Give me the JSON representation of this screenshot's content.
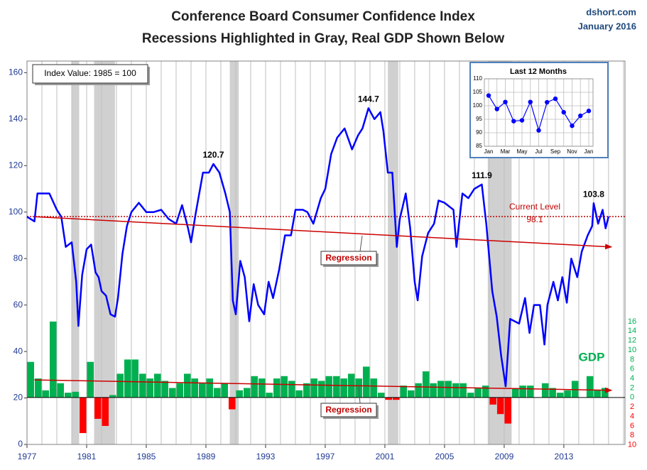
{
  "chart_data": [
    {
      "type": "line",
      "title": "Conference Board Consumer Confidence Index",
      "subtitle": "Recessions Highlighted in Gray, Real GDP Shown Below",
      "source": "dshort.com",
      "date": "January 2016",
      "index_note": "Index Value: 1985 = 100",
      "xlim": [
        1977,
        2017.1
      ],
      "xticks": [
        1977,
        1981,
        1985,
        1989,
        1993,
        1997,
        2001,
        2005,
        2009,
        2013
      ],
      "ylim": [
        0,
        165
      ],
      "yticks": [
        0,
        20,
        40,
        60,
        80,
        100,
        120,
        140,
        160
      ],
      "y2lim": [
        -9.9,
        70.9
      ],
      "y2ticks": [
        {
          "value": -10,
          "label": "10"
        },
        {
          "value": -8,
          "label": "8"
        },
        {
          "value": -6,
          "label": "6"
        },
        {
          "value": -4,
          "label": "4"
        },
        {
          "value": -2,
          "label": "2"
        },
        0,
        2,
        4,
        6,
        8,
        10,
        12,
        14,
        16
      ],
      "recessions": [
        [
          1980.0,
          1980.5
        ],
        [
          1981.5,
          1982.9
        ],
        [
          1990.6,
          1991.2
        ],
        [
          2001.2,
          2001.9
        ],
        [
          2007.9,
          2009.5
        ]
      ],
      "series": [
        {
          "name": "Index",
          "type": "line",
          "color": "#0000ff",
          "x": [
            1977.0,
            1977.5,
            1977.7,
            1978.0,
            1978.5,
            1979.0,
            1979.3,
            1979.6,
            1980.0,
            1980.3,
            1980.45,
            1980.7,
            1981.0,
            1981.3,
            1981.6,
            1981.8,
            1982.0,
            1982.3,
            1982.6,
            1982.9,
            1983.1,
            1983.4,
            1983.7,
            1984.0,
            1984.5,
            1985.0,
            1985.5,
            1986.0,
            1986.5,
            1987.0,
            1987.4,
            1987.8,
            1988.0,
            1988.3,
            1988.8,
            1989.2,
            1989.5,
            1989.9,
            1990.3,
            1990.6,
            1990.8,
            1991.0,
            1991.3,
            1991.6,
            1991.9,
            1992.2,
            1992.5,
            1992.9,
            1993.2,
            1993.5,
            1993.9,
            1994.3,
            1994.7,
            1995.0,
            1995.5,
            1995.8,
            1996.2,
            1996.7,
            1997.0,
            1997.4,
            1997.8,
            1998.3,
            1998.8,
            1999.2,
            1999.5,
            1999.9,
            2000.3,
            2000.7,
            2000.9,
            2001.2,
            2001.5,
            2001.8,
            2002.0,
            2002.4,
            2002.7,
            2003.0,
            2003.2,
            2003.5,
            2003.9,
            2004.3,
            2004.6,
            2005.0,
            2005.6,
            2005.8,
            2006.2,
            2006.6,
            2007.0,
            2007.5,
            2007.8,
            2008.2,
            2008.5,
            2008.8,
            2009.1,
            2009.4,
            2009.7,
            2010.0,
            2010.4,
            2010.7,
            2011.0,
            2011.4,
            2011.7,
            2011.9,
            2012.3,
            2012.6,
            2012.9,
            2013.2,
            2013.5,
            2013.9,
            2014.2,
            2014.6,
            2014.9,
            2015.0,
            2015.3,
            2015.6,
            2015.8,
            2016.0
          ],
          "values": [
            98,
            96,
            108,
            108,
            108,
            101,
            98,
            85,
            87,
            70,
            51,
            73,
            84,
            86,
            74,
            72,
            66,
            64,
            56,
            55,
            63,
            82,
            94,
            100,
            104,
            100,
            100,
            101,
            97,
            95,
            103,
            93,
            87,
            99,
            117,
            117,
            120.7,
            117,
            108,
            100,
            62,
            56,
            79,
            72,
            53,
            69,
            60,
            56,
            70,
            63,
            75,
            90,
            90,
            101,
            101,
            100,
            95,
            106,
            110,
            125,
            132,
            136,
            127,
            133,
            136,
            144.7,
            140,
            143,
            135,
            117,
            117,
            85,
            97,
            108,
            93,
            70,
            62,
            81,
            91,
            95,
            105,
            104,
            101,
            85,
            108,
            106,
            110,
            111.9,
            95,
            66,
            55,
            38,
            25,
            54,
            53,
            52,
            63,
            48,
            60,
            60,
            43,
            60,
            70,
            62,
            72,
            61,
            80,
            72,
            83,
            90,
            94,
            103.8,
            95,
            101,
            93,
            98.1
          ]
        },
        {
          "name": "GDP",
          "type": "bar",
          "axis": "y2",
          "color": "#00b050",
          "negative_color": "#ff0000",
          "bar_span": 0.5,
          "x": [
            1977.0,
            1977.5,
            1978.0,
            1978.5,
            1979.0,
            1979.5,
            1980.0,
            1980.5,
            1981.0,
            1981.5,
            1982.0,
            1982.5,
            1983.0,
            1983.5,
            1984.0,
            1984.5,
            1985.0,
            1985.5,
            1986.0,
            1986.5,
            1987.0,
            1987.5,
            1988.0,
            1988.5,
            1989.0,
            1989.5,
            1990.0,
            1990.5,
            1991.0,
            1991.5,
            1992.0,
            1992.5,
            1993.0,
            1993.5,
            1994.0,
            1994.5,
            1995.0,
            1995.5,
            1996.0,
            1996.5,
            1997.0,
            1997.5,
            1998.0,
            1998.5,
            1999.0,
            1999.5,
            2000.0,
            2000.5,
            2001.0,
            2001.5,
            2002.0,
            2002.5,
            2003.0,
            2003.5,
            2004.0,
            2004.5,
            2005.0,
            2005.5,
            2006.0,
            2006.5,
            2007.0,
            2007.5,
            2008.0,
            2008.5,
            2009.0,
            2009.5,
            2010.0,
            2010.5,
            2011.0,
            2011.5,
            2012.0,
            2012.5,
            2013.0,
            2013.5,
            2014.0,
            2014.5,
            2015.0,
            2015.5
          ],
          "values": [
            7.5,
            4,
            1.5,
            16,
            3,
            1,
            1.2,
            -7.5,
            7.5,
            -4.5,
            -6,
            0.5,
            5,
            8,
            8,
            5,
            4,
            5,
            3.5,
            2,
            3,
            5,
            4,
            3,
            4,
            2,
            3,
            -2.5,
            1.5,
            2,
            4.5,
            4,
            1,
            4,
            4.5,
            3.5,
            1.5,
            3,
            4,
            3.5,
            4.5,
            4.5,
            4,
            5,
            4,
            6.5,
            4,
            1,
            -0.5,
            -0.5,
            2.5,
            1.5,
            3,
            5.5,
            3,
            3.5,
            3.5,
            3,
            3,
            1,
            2,
            2.5,
            -1.5,
            -3.5,
            -5.5,
            2,
            2.5,
            2.5,
            0,
            3,
            2,
            1,
            1.5,
            3.5,
            0,
            4.5,
            1.5,
            2
          ]
        }
      ],
      "peak_labels": [
        120.7,
        144.7,
        111.9,
        103.8
      ],
      "current_level_label": "Current Level",
      "current_level": 98.1,
      "regression_label": "Regression",
      "regression": {
        "color": "#cc0000",
        "x": [
          1977.5,
          2016.2
        ],
        "values": [
          98,
          85
        ]
      },
      "gdp_regression": {
        "color": "#cc0000",
        "x": [
          1977.5,
          2016.2
        ],
        "values": [
          3.7,
          1.5
        ]
      },
      "gdp_label": "GDP"
    },
    {
      "type": "line",
      "title": "Last 12 Months",
      "color": "#0000ff",
      "categories": [
        "Jan",
        null,
        "Mar",
        null,
        "May",
        null,
        "Jul",
        null,
        "Sep",
        null,
        "Nov",
        null,
        "Jan"
      ],
      "values": [
        103.8,
        98.8,
        101.4,
        94.3,
        94.6,
        101.4,
        90.9,
        101.3,
        102.6,
        97.6,
        92.6,
        96.3,
        98.1
      ],
      "ylim": [
        85,
        110
      ],
      "yticks": [
        85,
        90,
        95,
        100,
        105,
        110
      ],
      "grid": true
    }
  ]
}
